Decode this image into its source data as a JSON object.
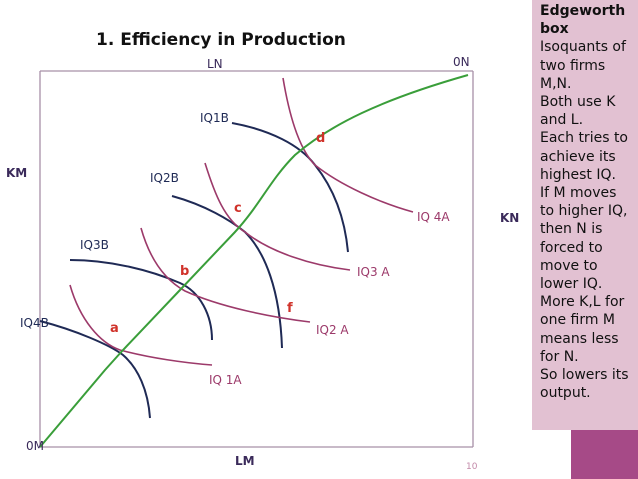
{
  "title": "1. Efficiency in Production",
  "side_panel": {
    "title": "Edgeworth box",
    "lines": [
      "Isoquants of",
      "two firms",
      "M,N.",
      "Both use K",
      "and L.",
      "Each tries to",
      "achieve its",
      "highest IQ.",
      "If M moves",
      "to higher IQ,",
      "then N is",
      "forced to",
      "move to",
      "lower IQ.",
      "More K,L for",
      "one firm M",
      "means less",
      "for N.",
      "So lowers its",
      "output."
    ]
  },
  "axes": {
    "top": "LN",
    "bottom": "LM",
    "left": "KM",
    "right": "KN",
    "origin_m": "0M",
    "origin_n": "0N"
  },
  "isoquants_m": [
    "IQ 1A",
    "IQ2 A",
    "IQ3 A",
    "IQ 4A"
  ],
  "isoquants_n": [
    "IQ1B",
    "IQ2B",
    "IQ3B",
    "IQ4B"
  ],
  "points": [
    "a",
    "b",
    "c",
    "d",
    "f"
  ],
  "page_number": "10",
  "colors": {
    "box": "#a890a8",
    "contract_curve": "#3a9e3a",
    "isoquant_m": "#9c3a6a",
    "isoquant_n": "#1f2a55",
    "point_label": "#d0322a",
    "axis_label": "#3a2a5a",
    "iq_m_label": "#9c3a6a",
    "iq_n_label": "#1f2a55",
    "panel": "#e2c1d2",
    "strip": "#a64a87"
  }
}
